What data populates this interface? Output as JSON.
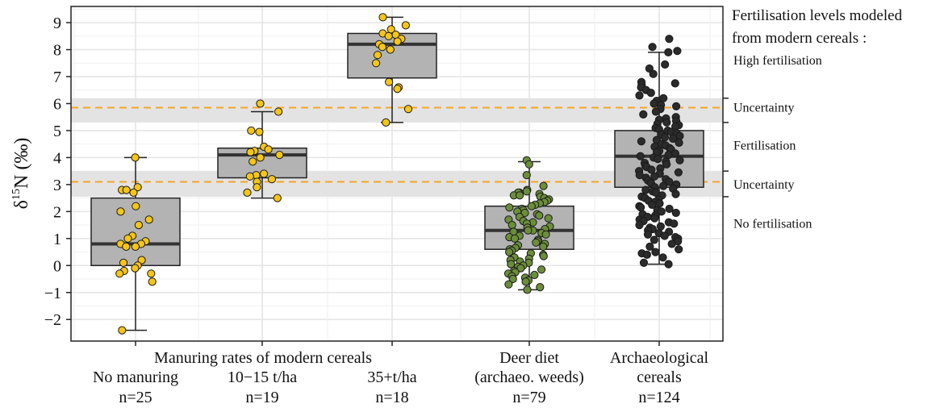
{
  "chart_data": {
    "type": "box",
    "ylabel_base": "δ",
    "ylabel_sup": "15",
    "ylabel_rest": "N (‰)",
    "ylim": [
      -2.8,
      9.6
    ],
    "yticks": [
      -2,
      -1,
      0,
      1,
      2,
      3,
      4,
      5,
      6,
      7,
      8,
      9
    ],
    "grid": true,
    "group_header": "Manuring rates of modern cereals",
    "reference_lines": [
      {
        "value": 5.85,
        "band": [
          5.3,
          6.2
        ],
        "color": "#f5a623"
      },
      {
        "value": 3.1,
        "band": [
          2.55,
          3.5
        ],
        "color": "#f5a623"
      }
    ],
    "categories": [
      {
        "name": "No manuring",
        "name2": "",
        "n_label": "n=25",
        "color": "#f5c518",
        "box": {
          "q1": 0.0,
          "median": 0.8,
          "q3": 2.5,
          "whisker_low": -2.4,
          "whisker_high": 4.0
        },
        "points": [
          4.0,
          2.9,
          2.8,
          2.8,
          2.7,
          2.2,
          2.0,
          1.7,
          1.5,
          1.1,
          1.0,
          0.9,
          0.8,
          0.8,
          0.7,
          0.7,
          0.2,
          0.1,
          0.0,
          -0.1,
          -0.2,
          -0.3,
          -0.3,
          -0.6,
          -2.4
        ]
      },
      {
        "name": "10−15 t/ha",
        "name2": "",
        "n_label": "n=19",
        "color": "#f5c518",
        "box": {
          "q1": 3.25,
          "median": 4.1,
          "q3": 4.35,
          "whisker_low": 2.5,
          "whisker_high": 5.7
        },
        "points": [
          6.0,
          5.7,
          5.0,
          4.95,
          4.4,
          4.3,
          4.25,
          4.2,
          4.1,
          4.0,
          3.85,
          3.4,
          3.35,
          3.3,
          3.2,
          3.1,
          2.9,
          2.7,
          2.5
        ]
      },
      {
        "name": "35+t/ha",
        "name2": "",
        "n_label": "n=18",
        "color": "#f5c518",
        "box": {
          "q1": 6.95,
          "median": 8.2,
          "q3": 8.6,
          "whisker_low": 5.3,
          "whisker_high": 9.2
        },
        "points": [
          9.2,
          8.9,
          8.75,
          8.6,
          8.55,
          8.5,
          8.4,
          8.3,
          8.2,
          8.1,
          8.0,
          7.8,
          7.5,
          6.8,
          6.6,
          6.55,
          5.8,
          5.3
        ]
      },
      {
        "name": "Deer diet",
        "name2": "(archaeo. weeds)",
        "n_label": "n=79",
        "color": "#6b8e3a",
        "box": {
          "q1": 0.6,
          "median": 1.3,
          "q3": 2.2,
          "whisker_low": -0.9,
          "whisker_high": 3.85
        },
        "points": [
          3.9,
          3.75,
          3.35,
          2.95,
          2.8,
          2.75,
          2.7,
          2.7,
          2.65,
          2.6,
          2.6,
          2.55,
          2.5,
          2.45,
          2.4,
          2.35,
          2.3,
          2.25,
          2.2,
          2.15,
          2.1,
          2.05,
          2.0,
          1.95,
          1.9,
          1.85,
          1.8,
          1.75,
          1.7,
          1.65,
          1.6,
          1.55,
          1.5,
          1.45,
          1.4,
          1.35,
          1.3,
          1.3,
          1.25,
          1.2,
          1.15,
          1.1,
          1.05,
          1.0,
          0.95,
          0.9,
          0.85,
          0.8,
          0.75,
          0.7,
          0.65,
          0.6,
          0.55,
          0.5,
          0.45,
          0.4,
          0.35,
          0.3,
          0.25,
          0.2,
          0.15,
          0.1,
          0.05,
          0.0,
          -0.05,
          -0.1,
          -0.15,
          -0.2,
          -0.25,
          -0.3,
          -0.35,
          -0.4,
          -0.45,
          -0.5,
          -0.55,
          -0.6,
          -0.7,
          -0.8,
          -0.9
        ]
      },
      {
        "name": "Archaeological",
        "name2": "cereals",
        "n_label": "n=124",
        "color": "#2b2b2b",
        "box": {
          "q1": 2.9,
          "median": 4.05,
          "q3": 5.0,
          "whisker_low": 0.05,
          "whisker_high": 7.9
        },
        "points": [
          8.4,
          8.1,
          7.95,
          7.9,
          7.45,
          7.3,
          7.1,
          6.8,
          6.75,
          6.7,
          6.6,
          6.5,
          6.4,
          6.3,
          6.2,
          6.1,
          6.0,
          5.95,
          5.9,
          5.8,
          5.7,
          5.6,
          5.5,
          5.45,
          5.4,
          5.35,
          5.3,
          5.25,
          5.2,
          5.15,
          5.1,
          5.05,
          5.0,
          4.95,
          4.9,
          4.85,
          4.8,
          4.75,
          4.7,
          4.65,
          4.6,
          4.55,
          4.5,
          4.45,
          4.4,
          4.35,
          4.3,
          4.25,
          4.2,
          4.15,
          4.1,
          4.05,
          4.0,
          3.95,
          3.9,
          3.85,
          3.8,
          3.75,
          3.7,
          3.65,
          3.6,
          3.55,
          3.5,
          3.45,
          3.4,
          3.35,
          3.3,
          3.25,
          3.2,
          3.15,
          3.1,
          3.05,
          3.0,
          2.95,
          2.9,
          2.85,
          2.8,
          2.75,
          2.7,
          2.65,
          2.6,
          2.55,
          2.5,
          2.45,
          2.4,
          2.35,
          2.3,
          2.25,
          2.2,
          2.15,
          2.1,
          2.05,
          2.0,
          1.95,
          1.9,
          1.85,
          1.8,
          1.75,
          1.7,
          1.65,
          1.6,
          1.55,
          1.5,
          1.45,
          1.4,
          1.35,
          1.3,
          1.25,
          1.2,
          1.15,
          1.1,
          1.05,
          1.0,
          0.95,
          0.9,
          0.8,
          0.5,
          0.45,
          0.4,
          0.1,
          0.05,
          0.3,
          0.6,
          0.7
        ]
      }
    ],
    "legend": {
      "title_line1": "Fertilisation levels modeled",
      "title_line2": "from modern cereals :",
      "levels": [
        {
          "label": "High fertilisation",
          "value": 7.6
        },
        {
          "label": "Uncertainty",
          "value": 5.85
        },
        {
          "label": "Fertilisation",
          "value": 4.45
        },
        {
          "label": "Uncertainty",
          "value": 3.0
        },
        {
          "label": "No fertilisation",
          "value": 1.55
        }
      ],
      "boundary_ticks": [
        6.2,
        5.3,
        3.5,
        2.55
      ]
    }
  }
}
